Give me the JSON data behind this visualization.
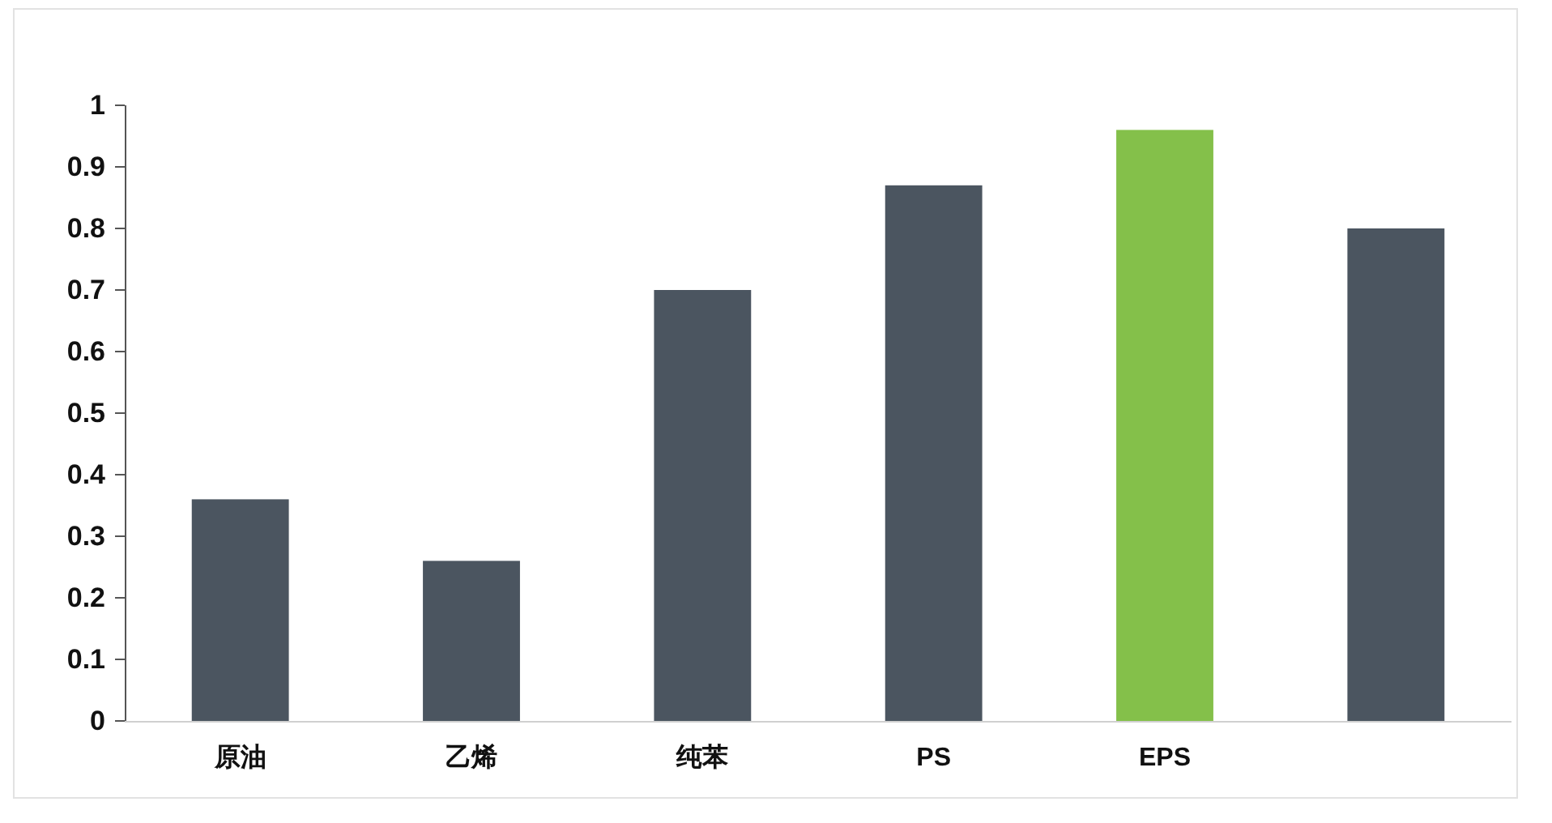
{
  "chart_data": {
    "type": "bar",
    "categories": [
      "原油",
      "乙烯",
      "纯苯",
      "PS",
      "EPS",
      null
    ],
    "values": [
      0.36,
      0.26,
      0.7,
      0.87,
      0.96,
      0.8
    ],
    "colors": [
      "#4b5560",
      "#4b5560",
      "#4b5560",
      "#4b5560",
      "#84c04a",
      "#4b5560"
    ],
    "ylim": [
      0,
      1
    ],
    "yticks": [
      0,
      0.1,
      0.2,
      0.3,
      0.4,
      0.5,
      0.6,
      0.7,
      0.8,
      0.9,
      1
    ]
  }
}
